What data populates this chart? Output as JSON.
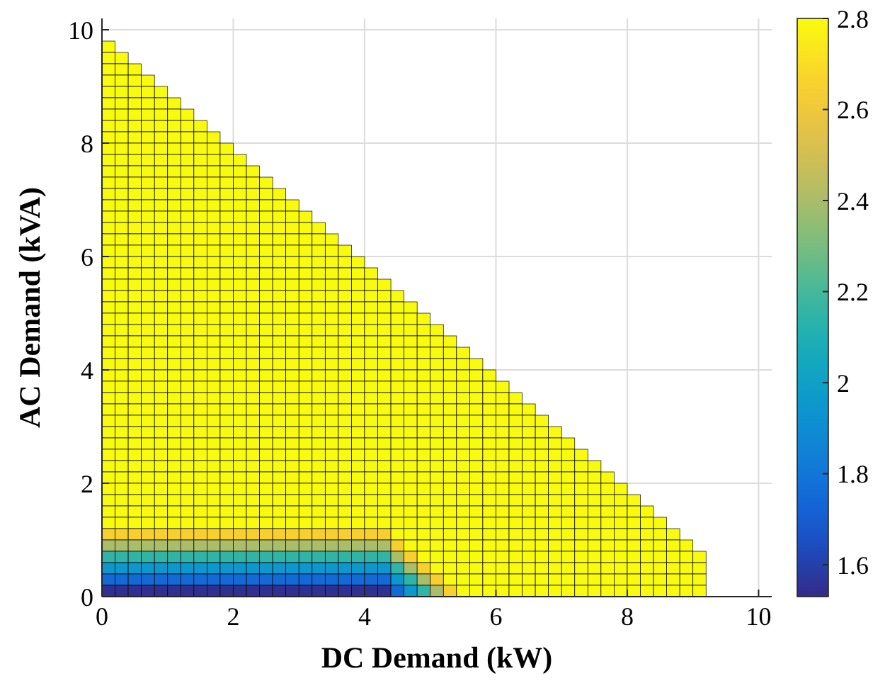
{
  "chart_data": {
    "type": "heatmap",
    "xlabel": "DC Demand (kW)",
    "ylabel": "AC Demand (kVA)",
    "xlim": [
      0,
      10.2
    ],
    "xticks": [
      0,
      2,
      4,
      6,
      8,
      10
    ],
    "ylim": [
      0,
      10.2
    ],
    "yticks": [
      0,
      2,
      4,
      6,
      8,
      10
    ],
    "grid": true,
    "clim": [
      1.53,
      2.8
    ],
    "cticks": [
      1.6,
      1.8,
      2,
      2.2,
      2.4,
      2.6,
      2.8
    ],
    "x": [
      0.1,
      0.3,
      0.5,
      0.7,
      0.9,
      1.1,
      1.3,
      1.5,
      1.7,
      1.9,
      2.1,
      2.3,
      2.5,
      2.7,
      2.9,
      3.1,
      3.3,
      3.5,
      3.7,
      3.9,
      4.1,
      4.3,
      4.5,
      4.7,
      4.9,
      5.1,
      5.3,
      5.5,
      5.7,
      5.9,
      6.1,
      6.3,
      6.5,
      6.7,
      6.9,
      7.1,
      7.3,
      7.5,
      7.7,
      7.9,
      8.1,
      8.3,
      8.5,
      8.7,
      8.9,
      9.1
    ],
    "y": [
      9.7,
      9.5,
      9.3,
      9.1,
      8.9,
      8.7,
      8.5,
      8.3,
      8.1,
      7.9,
      7.7,
      7.5,
      7.3,
      7.1,
      6.9,
      6.7,
      6.5,
      6.3,
      6.1,
      5.9,
      5.7,
      5.5,
      5.3,
      5.1,
      4.9,
      4.7,
      4.5,
      4.3,
      4.1,
      3.9,
      3.7,
      3.5,
      3.3,
      3.1,
      2.9,
      2.7,
      2.5,
      2.3,
      2.1,
      1.9,
      1.7,
      1.5,
      1.3,
      1.1,
      0.9,
      0.7,
      0.5,
      0.3,
      0.1
    ],
    "cells": [
      [
        2.8,
        null,
        null,
        null,
        null,
        null,
        null,
        null,
        null,
        null,
        null,
        null,
        null,
        null,
        null,
        null,
        null,
        null,
        null,
        null,
        null,
        null,
        null,
        null,
        null,
        null,
        null,
        null,
        null,
        null,
        null,
        null,
        null,
        null,
        null,
        null,
        null,
        null,
        null,
        null,
        null,
        null,
        null,
        null,
        null,
        null
      ],
      [
        2.8,
        2.8,
        null,
        null,
        null,
        null,
        null,
        null,
        null,
        null,
        null,
        null,
        null,
        null,
        null,
        null,
        null,
        null,
        null,
        null,
        null,
        null,
        null,
        null,
        null,
        null,
        null,
        null,
        null,
        null,
        null,
        null,
        null,
        null,
        null,
        null,
        null,
        null,
        null,
        null,
        null,
        null,
        null,
        null,
        null,
        null
      ],
      [
        2.8,
        2.8,
        2.8,
        null,
        null,
        null,
        null,
        null,
        null,
        null,
        null,
        null,
        null,
        null,
        null,
        null,
        null,
        null,
        null,
        null,
        null,
        null,
        null,
        null,
        null,
        null,
        null,
        null,
        null,
        null,
        null,
        null,
        null,
        null,
        null,
        null,
        null,
        null,
        null,
        null,
        null,
        null,
        null,
        null,
        null,
        null
      ],
      [
        2.8,
        2.8,
        2.8,
        2.8,
        null,
        null,
        null,
        null,
        null,
        null,
        null,
        null,
        null,
        null,
        null,
        null,
        null,
        null,
        null,
        null,
        null,
        null,
        null,
        null,
        null,
        null,
        null,
        null,
        null,
        null,
        null,
        null,
        null,
        null,
        null,
        null,
        null,
        null,
        null,
        null,
        null,
        null,
        null,
        null,
        null,
        null
      ],
      [
        2.8,
        2.8,
        2.8,
        2.8,
        2.8,
        null,
        null,
        null,
        null,
        null,
        null,
        null,
        null,
        null,
        null,
        null,
        null,
        null,
        null,
        null,
        null,
        null,
        null,
        null,
        null,
        null,
        null,
        null,
        null,
        null,
        null,
        null,
        null,
        null,
        null,
        null,
        null,
        null,
        null,
        null,
        null,
        null,
        null,
        null,
        null,
        null
      ],
      [
        2.8,
        2.8,
        2.8,
        2.8,
        2.8,
        2.8,
        null,
        null,
        null,
        null,
        null,
        null,
        null,
        null,
        null,
        null,
        null,
        null,
        null,
        null,
        null,
        null,
        null,
        null,
        null,
        null,
        null,
        null,
        null,
        null,
        null,
        null,
        null,
        null,
        null,
        null,
        null,
        null,
        null,
        null,
        null,
        null,
        null,
        null,
        null,
        null
      ],
      [
        2.8,
        2.8,
        2.8,
        2.8,
        2.8,
        2.8,
        2.8,
        null,
        null,
        null,
        null,
        null,
        null,
        null,
        null,
        null,
        null,
        null,
        null,
        null,
        null,
        null,
        null,
        null,
        null,
        null,
        null,
        null,
        null,
        null,
        null,
        null,
        null,
        null,
        null,
        null,
        null,
        null,
        null,
        null,
        null,
        null,
        null,
        null,
        null,
        null
      ],
      [
        2.8,
        2.8,
        2.8,
        2.8,
        2.8,
        2.8,
        2.8,
        2.8,
        null,
        null,
        null,
        null,
        null,
        null,
        null,
        null,
        null,
        null,
        null,
        null,
        null,
        null,
        null,
        null,
        null,
        null,
        null,
        null,
        null,
        null,
        null,
        null,
        null,
        null,
        null,
        null,
        null,
        null,
        null,
        null,
        null,
        null,
        null,
        null,
        null,
        null
      ],
      [
        2.8,
        2.8,
        2.8,
        2.8,
        2.8,
        2.8,
        2.8,
        2.8,
        2.8,
        null,
        null,
        null,
        null,
        null,
        null,
        null,
        null,
        null,
        null,
        null,
        null,
        null,
        null,
        null,
        null,
        null,
        null,
        null,
        null,
        null,
        null,
        null,
        null,
        null,
        null,
        null,
        null,
        null,
        null,
        null,
        null,
        null,
        null,
        null,
        null,
        null
      ],
      [
        2.8,
        2.8,
        2.8,
        2.8,
        2.8,
        2.8,
        2.8,
        2.8,
        2.8,
        2.8,
        null,
        null,
        null,
        null,
        null,
        null,
        null,
        null,
        null,
        null,
        null,
        null,
        null,
        null,
        null,
        null,
        null,
        null,
        null,
        null,
        null,
        null,
        null,
        null,
        null,
        null,
        null,
        null,
        null,
        null,
        null,
        null,
        null,
        null,
        null,
        null
      ],
      [
        2.8,
        2.8,
        2.8,
        2.8,
        2.8,
        2.8,
        2.8,
        2.8,
        2.8,
        2.8,
        2.8,
        null,
        null,
        null,
        null,
        null,
        null,
        null,
        null,
        null,
        null,
        null,
        null,
        null,
        null,
        null,
        null,
        null,
        null,
        null,
        null,
        null,
        null,
        null,
        null,
        null,
        null,
        null,
        null,
        null,
        null,
        null,
        null,
        null,
        null,
        null
      ],
      [
        2.8,
        2.8,
        2.8,
        2.8,
        2.8,
        2.8,
        2.8,
        2.8,
        2.8,
        2.8,
        2.8,
        2.8,
        null,
        null,
        null,
        null,
        null,
        null,
        null,
        null,
        null,
        null,
        null,
        null,
        null,
        null,
        null,
        null,
        null,
        null,
        null,
        null,
        null,
        null,
        null,
        null,
        null,
        null,
        null,
        null,
        null,
        null,
        null,
        null,
        null,
        null
      ],
      [
        2.8,
        2.8,
        2.8,
        2.8,
        2.8,
        2.8,
        2.8,
        2.8,
        2.8,
        2.8,
        2.8,
        2.8,
        2.8,
        null,
        null,
        null,
        null,
        null,
        null,
        null,
        null,
        null,
        null,
        null,
        null,
        null,
        null,
        null,
        null,
        null,
        null,
        null,
        null,
        null,
        null,
        null,
        null,
        null,
        null,
        null,
        null,
        null,
        null,
        null,
        null,
        null
      ],
      [
        2.8,
        2.8,
        2.8,
        2.8,
        2.8,
        2.8,
        2.8,
        2.8,
        2.8,
        2.8,
        2.8,
        2.8,
        2.8,
        2.8,
        null,
        null,
        null,
        null,
        null,
        null,
        null,
        null,
        null,
        null,
        null,
        null,
        null,
        null,
        null,
        null,
        null,
        null,
        null,
        null,
        null,
        null,
        null,
        null,
        null,
        null,
        null,
        null,
        null,
        null,
        null,
        null
      ],
      [
        2.8,
        2.8,
        2.8,
        2.8,
        2.8,
        2.8,
        2.8,
        2.8,
        2.8,
        2.8,
        2.8,
        2.8,
        2.8,
        2.8,
        2.8,
        null,
        null,
        null,
        null,
        null,
        null,
        null,
        null,
        null,
        null,
        null,
        null,
        null,
        null,
        null,
        null,
        null,
        null,
        null,
        null,
        null,
        null,
        null,
        null,
        null,
        null,
        null,
        null,
        null,
        null,
        null
      ],
      [
        2.8,
        2.8,
        2.8,
        2.8,
        2.8,
        2.8,
        2.8,
        2.8,
        2.8,
        2.8,
        2.8,
        2.8,
        2.8,
        2.8,
        2.8,
        2.8,
        null,
        null,
        null,
        null,
        null,
        null,
        null,
        null,
        null,
        null,
        null,
        null,
        null,
        null,
        null,
        null,
        null,
        null,
        null,
        null,
        null,
        null,
        null,
        null,
        null,
        null,
        null,
        null,
        null,
        null
      ],
      [
        2.8,
        2.8,
        2.8,
        2.8,
        2.8,
        2.8,
        2.8,
        2.8,
        2.8,
        2.8,
        2.8,
        2.8,
        2.8,
        2.8,
        2.8,
        2.8,
        2.8,
        null,
        null,
        null,
        null,
        null,
        null,
        null,
        null,
        null,
        null,
        null,
        null,
        null,
        null,
        null,
        null,
        null,
        null,
        null,
        null,
        null,
        null,
        null,
        null,
        null,
        null,
        null,
        null,
        null
      ],
      [
        2.8,
        2.8,
        2.8,
        2.8,
        2.8,
        2.8,
        2.8,
        2.8,
        2.8,
        2.8,
        2.8,
        2.8,
        2.8,
        2.8,
        2.8,
        2.8,
        2.8,
        2.8,
        null,
        null,
        null,
        null,
        null,
        null,
        null,
        null,
        null,
        null,
        null,
        null,
        null,
        null,
        null,
        null,
        null,
        null,
        null,
        null,
        null,
        null,
        null,
        null,
        null,
        null,
        null,
        null
      ],
      [
        2.8,
        2.8,
        2.8,
        2.8,
        2.8,
        2.8,
        2.8,
        2.8,
        2.8,
        2.8,
        2.8,
        2.8,
        2.8,
        2.8,
        2.8,
        2.8,
        2.8,
        2.8,
        2.8,
        null,
        null,
        null,
        null,
        null,
        null,
        null,
        null,
        null,
        null,
        null,
        null,
        null,
        null,
        null,
        null,
        null,
        null,
        null,
        null,
        null,
        null,
        null,
        null,
        null,
        null,
        null
      ],
      [
        2.8,
        2.8,
        2.8,
        2.8,
        2.8,
        2.8,
        2.8,
        2.8,
        2.8,
        2.8,
        2.8,
        2.8,
        2.8,
        2.8,
        2.8,
        2.8,
        2.8,
        2.8,
        2.8,
        2.8,
        null,
        null,
        null,
        null,
        null,
        null,
        null,
        null,
        null,
        null,
        null,
        null,
        null,
        null,
        null,
        null,
        null,
        null,
        null,
        null,
        null,
        null,
        null,
        null,
        null,
        null
      ],
      [
        2.8,
        2.8,
        2.8,
        2.8,
        2.8,
        2.8,
        2.8,
        2.8,
        2.8,
        2.8,
        2.8,
        2.8,
        2.8,
        2.8,
        2.8,
        2.8,
        2.8,
        2.8,
        2.8,
        2.8,
        2.8,
        null,
        null,
        null,
        null,
        null,
        null,
        null,
        null,
        null,
        null,
        null,
        null,
        null,
        null,
        null,
        null,
        null,
        null,
        null,
        null,
        null,
        null,
        null,
        null,
        null
      ],
      [
        2.8,
        2.8,
        2.8,
        2.8,
        2.8,
        2.8,
        2.8,
        2.8,
        2.8,
        2.8,
        2.8,
        2.8,
        2.8,
        2.8,
        2.8,
        2.8,
        2.8,
        2.8,
        2.8,
        2.8,
        2.8,
        2.8,
        null,
        null,
        null,
        null,
        null,
        null,
        null,
        null,
        null,
        null,
        null,
        null,
        null,
        null,
        null,
        null,
        null,
        null,
        null,
        null,
        null,
        null,
        null,
        null
      ],
      [
        2.8,
        2.8,
        2.8,
        2.8,
        2.8,
        2.8,
        2.8,
        2.8,
        2.8,
        2.8,
        2.8,
        2.8,
        2.8,
        2.8,
        2.8,
        2.8,
        2.8,
        2.8,
        2.8,
        2.8,
        2.8,
        2.8,
        2.8,
        null,
        null,
        null,
        null,
        null,
        null,
        null,
        null,
        null,
        null,
        null,
        null,
        null,
        null,
        null,
        null,
        null,
        null,
        null,
        null,
        null,
        null,
        null
      ],
      [
        2.8,
        2.8,
        2.8,
        2.8,
        2.8,
        2.8,
        2.8,
        2.8,
        2.8,
        2.8,
        2.8,
        2.8,
        2.8,
        2.8,
        2.8,
        2.8,
        2.8,
        2.8,
        2.8,
        2.8,
        2.8,
        2.8,
        2.8,
        2.8,
        null,
        null,
        null,
        null,
        null,
        null,
        null,
        null,
        null,
        null,
        null,
        null,
        null,
        null,
        null,
        null,
        null,
        null,
        null,
        null,
        null,
        null
      ],
      [
        2.8,
        2.8,
        2.8,
        2.8,
        2.8,
        2.8,
        2.8,
        2.8,
        2.8,
        2.8,
        2.8,
        2.8,
        2.8,
        2.8,
        2.8,
        2.8,
        2.8,
        2.8,
        2.8,
        2.8,
        2.8,
        2.8,
        2.8,
        2.8,
        2.8,
        null,
        null,
        null,
        null,
        null,
        null,
        null,
        null,
        null,
        null,
        null,
        null,
        null,
        null,
        null,
        null,
        null,
        null,
        null,
        null,
        null
      ],
      [
        2.8,
        2.8,
        2.8,
        2.8,
        2.8,
        2.8,
        2.8,
        2.8,
        2.8,
        2.8,
        2.8,
        2.8,
        2.8,
        2.8,
        2.8,
        2.8,
        2.8,
        2.8,
        2.8,
        2.8,
        2.8,
        2.8,
        2.8,
        2.8,
        2.8,
        2.8,
        null,
        null,
        null,
        null,
        null,
        null,
        null,
        null,
        null,
        null,
        null,
        null,
        null,
        null,
        null,
        null,
        null,
        null,
        null,
        null
      ],
      [
        2.8,
        2.8,
        2.8,
        2.8,
        2.8,
        2.8,
        2.8,
        2.8,
        2.8,
        2.8,
        2.8,
        2.8,
        2.8,
        2.8,
        2.8,
        2.8,
        2.8,
        2.8,
        2.8,
        2.8,
        2.8,
        2.8,
        2.8,
        2.8,
        2.8,
        2.8,
        2.8,
        null,
        null,
        null,
        null,
        null,
        null,
        null,
        null,
        null,
        null,
        null,
        null,
        null,
        null,
        null,
        null,
        null,
        null,
        null
      ],
      [
        2.8,
        2.8,
        2.8,
        2.8,
        2.8,
        2.8,
        2.8,
        2.8,
        2.8,
        2.8,
        2.8,
        2.8,
        2.8,
        2.8,
        2.8,
        2.8,
        2.8,
        2.8,
        2.8,
        2.8,
        2.8,
        2.8,
        2.8,
        2.8,
        2.8,
        2.8,
        2.8,
        2.8,
        null,
        null,
        null,
        null,
        null,
        null,
        null,
        null,
        null,
        null,
        null,
        null,
        null,
        null,
        null,
        null,
        null,
        null
      ],
      [
        2.8,
        2.8,
        2.8,
        2.8,
        2.8,
        2.8,
        2.8,
        2.8,
        2.8,
        2.8,
        2.8,
        2.8,
        2.8,
        2.8,
        2.8,
        2.8,
        2.8,
        2.8,
        2.8,
        2.8,
        2.8,
        2.8,
        2.8,
        2.8,
        2.8,
        2.8,
        2.8,
        2.8,
        2.8,
        null,
        null,
        null,
        null,
        null,
        null,
        null,
        null,
        null,
        null,
        null,
        null,
        null,
        null,
        null,
        null,
        null
      ],
      [
        2.8,
        2.8,
        2.8,
        2.8,
        2.8,
        2.8,
        2.8,
        2.8,
        2.8,
        2.8,
        2.8,
        2.8,
        2.8,
        2.8,
        2.8,
        2.8,
        2.8,
        2.8,
        2.8,
        2.8,
        2.8,
        2.8,
        2.8,
        2.8,
        2.8,
        2.8,
        2.8,
        2.8,
        2.8,
        2.8,
        null,
        null,
        null,
        null,
        null,
        null,
        null,
        null,
        null,
        null,
        null,
        null,
        null,
        null,
        null,
        null
      ],
      [
        2.8,
        2.8,
        2.8,
        2.8,
        2.8,
        2.8,
        2.8,
        2.8,
        2.8,
        2.8,
        2.8,
        2.8,
        2.8,
        2.8,
        2.8,
        2.8,
        2.8,
        2.8,
        2.8,
        2.8,
        2.8,
        2.8,
        2.8,
        2.8,
        2.8,
        2.8,
        2.8,
        2.8,
        2.8,
        2.8,
        2.8,
        null,
        null,
        null,
        null,
        null,
        null,
        null,
        null,
        null,
        null,
        null,
        null,
        null,
        null,
        null
      ],
      [
        2.8,
        2.8,
        2.8,
        2.8,
        2.8,
        2.8,
        2.8,
        2.8,
        2.8,
        2.8,
        2.8,
        2.8,
        2.8,
        2.8,
        2.8,
        2.8,
        2.8,
        2.8,
        2.8,
        2.8,
        2.8,
        2.8,
        2.8,
        2.8,
        2.8,
        2.8,
        2.8,
        2.8,
        2.8,
        2.8,
        2.8,
        2.8,
        null,
        null,
        null,
        null,
        null,
        null,
        null,
        null,
        null,
        null,
        null,
        null,
        null,
        null
      ],
      [
        2.8,
        2.8,
        2.8,
        2.8,
        2.8,
        2.8,
        2.8,
        2.8,
        2.8,
        2.8,
        2.8,
        2.8,
        2.8,
        2.8,
        2.8,
        2.8,
        2.8,
        2.8,
        2.8,
        2.8,
        2.8,
        2.8,
        2.8,
        2.8,
        2.8,
        2.8,
        2.8,
        2.8,
        2.8,
        2.8,
        2.8,
        2.8,
        2.8,
        null,
        null,
        null,
        null,
        null,
        null,
        null,
        null,
        null,
        null,
        null,
        null,
        null
      ],
      [
        2.8,
        2.8,
        2.8,
        2.8,
        2.8,
        2.8,
        2.8,
        2.8,
        2.8,
        2.8,
        2.8,
        2.8,
        2.8,
        2.8,
        2.8,
        2.8,
        2.8,
        2.8,
        2.8,
        2.8,
        2.8,
        2.8,
        2.8,
        2.8,
        2.8,
        2.8,
        2.8,
        2.8,
        2.8,
        2.8,
        2.8,
        2.8,
        2.8,
        2.8,
        null,
        null,
        null,
        null,
        null,
        null,
        null,
        null,
        null,
        null,
        null,
        null
      ],
      [
        2.8,
        2.8,
        2.8,
        2.8,
        2.8,
        2.8,
        2.8,
        2.8,
        2.8,
        2.8,
        2.8,
        2.8,
        2.8,
        2.8,
        2.8,
        2.8,
        2.8,
        2.8,
        2.8,
        2.8,
        2.8,
        2.8,
        2.8,
        2.8,
        2.8,
        2.8,
        2.8,
        2.8,
        2.8,
        2.8,
        2.8,
        2.8,
        2.8,
        2.8,
        2.8,
        null,
        null,
        null,
        null,
        null,
        null,
        null,
        null,
        null,
        null,
        null
      ],
      [
        2.8,
        2.8,
        2.8,
        2.8,
        2.8,
        2.8,
        2.8,
        2.8,
        2.8,
        2.8,
        2.8,
        2.8,
        2.8,
        2.8,
        2.8,
        2.8,
        2.8,
        2.8,
        2.8,
        2.8,
        2.8,
        2.8,
        2.8,
        2.8,
        2.8,
        2.8,
        2.8,
        2.8,
        2.8,
        2.8,
        2.8,
        2.8,
        2.8,
        2.8,
        2.8,
        2.8,
        null,
        null,
        null,
        null,
        null,
        null,
        null,
        null,
        null,
        null
      ],
      [
        2.8,
        2.8,
        2.8,
        2.8,
        2.8,
        2.8,
        2.8,
        2.8,
        2.8,
        2.8,
        2.8,
        2.8,
        2.8,
        2.8,
        2.8,
        2.8,
        2.8,
        2.8,
        2.8,
        2.8,
        2.8,
        2.8,
        2.8,
        2.8,
        2.8,
        2.8,
        2.8,
        2.8,
        2.8,
        2.8,
        2.8,
        2.8,
        2.8,
        2.8,
        2.8,
        2.8,
        2.8,
        null,
        null,
        null,
        null,
        null,
        null,
        null,
        null,
        null
      ],
      [
        2.8,
        2.8,
        2.8,
        2.8,
        2.8,
        2.8,
        2.8,
        2.8,
        2.8,
        2.8,
        2.8,
        2.8,
        2.8,
        2.8,
        2.8,
        2.8,
        2.8,
        2.8,
        2.8,
        2.8,
        2.8,
        2.8,
        2.8,
        2.8,
        2.8,
        2.8,
        2.8,
        2.8,
        2.8,
        2.8,
        2.8,
        2.8,
        2.8,
        2.8,
        2.8,
        2.8,
        2.8,
        2.8,
        null,
        null,
        null,
        null,
        null,
        null,
        null,
        null
      ],
      [
        2.8,
        2.8,
        2.8,
        2.8,
        2.8,
        2.8,
        2.8,
        2.8,
        2.8,
        2.8,
        2.8,
        2.8,
        2.8,
        2.8,
        2.8,
        2.8,
        2.8,
        2.8,
        2.8,
        2.8,
        2.8,
        2.8,
        2.8,
        2.8,
        2.8,
        2.8,
        2.8,
        2.8,
        2.8,
        2.8,
        2.8,
        2.8,
        2.8,
        2.8,
        2.8,
        2.8,
        2.8,
        2.8,
        2.8,
        null,
        null,
        null,
        null,
        null,
        null,
        null
      ],
      [
        2.8,
        2.8,
        2.8,
        2.8,
        2.8,
        2.8,
        2.8,
        2.8,
        2.8,
        2.8,
        2.8,
        2.8,
        2.8,
        2.8,
        2.8,
        2.8,
        2.8,
        2.8,
        2.8,
        2.8,
        2.8,
        2.8,
        2.8,
        2.8,
        2.8,
        2.8,
        2.8,
        2.8,
        2.8,
        2.8,
        2.8,
        2.8,
        2.8,
        2.8,
        2.8,
        2.8,
        2.8,
        2.8,
        2.8,
        2.8,
        null,
        null,
        null,
        null,
        null,
        null
      ],
      [
        2.8,
        2.8,
        2.8,
        2.8,
        2.8,
        2.8,
        2.8,
        2.8,
        2.8,
        2.8,
        2.8,
        2.8,
        2.8,
        2.8,
        2.8,
        2.8,
        2.8,
        2.8,
        2.8,
        2.8,
        2.8,
        2.8,
        2.8,
        2.8,
        2.8,
        2.8,
        2.8,
        2.8,
        2.8,
        2.8,
        2.8,
        2.8,
        2.8,
        2.8,
        2.8,
        2.8,
        2.8,
        2.8,
        2.8,
        2.8,
        2.8,
        null,
        null,
        null,
        null,
        null
      ],
      [
        2.8,
        2.8,
        2.8,
        2.8,
        2.8,
        2.8,
        2.8,
        2.8,
        2.8,
        2.8,
        2.8,
        2.8,
        2.8,
        2.8,
        2.8,
        2.8,
        2.8,
        2.8,
        2.8,
        2.8,
        2.8,
        2.8,
        2.8,
        2.8,
        2.8,
        2.8,
        2.8,
        2.8,
        2.8,
        2.8,
        2.8,
        2.8,
        2.8,
        2.8,
        2.8,
        2.8,
        2.8,
        2.8,
        2.8,
        2.8,
        2.8,
        2.8,
        null,
        null,
        null,
        null
      ],
      [
        2.8,
        2.8,
        2.8,
        2.8,
        2.8,
        2.8,
        2.8,
        2.8,
        2.8,
        2.8,
        2.8,
        2.8,
        2.8,
        2.8,
        2.8,
        2.8,
        2.8,
        2.8,
        2.8,
        2.8,
        2.8,
        2.8,
        2.8,
        2.8,
        2.8,
        2.8,
        2.8,
        2.8,
        2.8,
        2.8,
        2.8,
        2.8,
        2.8,
        2.8,
        2.8,
        2.8,
        2.8,
        2.8,
        2.8,
        2.8,
        2.8,
        2.8,
        2.8,
        null,
        null,
        null
      ],
      [
        2.65,
        2.65,
        2.65,
        2.65,
        2.65,
        2.65,
        2.65,
        2.65,
        2.65,
        2.65,
        2.65,
        2.65,
        2.65,
        2.65,
        2.65,
        2.65,
        2.65,
        2.65,
        2.65,
        2.65,
        2.65,
        2.65,
        2.8,
        2.8,
        2.8,
        2.8,
        2.8,
        2.8,
        2.8,
        2.8,
        2.8,
        2.8,
        2.8,
        2.8,
        2.8,
        2.8,
        2.8,
        2.8,
        2.8,
        2.8,
        2.8,
        2.8,
        2.8,
        2.8,
        null,
        null
      ],
      [
        2.4,
        2.4,
        2.4,
        2.4,
        2.4,
        2.4,
        2.4,
        2.4,
        2.4,
        2.4,
        2.4,
        2.4,
        2.4,
        2.4,
        2.4,
        2.4,
        2.4,
        2.4,
        2.4,
        2.4,
        2.4,
        2.4,
        2.65,
        2.8,
        2.8,
        2.8,
        2.8,
        2.8,
        2.8,
        2.8,
        2.8,
        2.8,
        2.8,
        2.8,
        2.8,
        2.8,
        2.8,
        2.8,
        2.8,
        2.8,
        2.8,
        2.8,
        2.8,
        2.8,
        2.8,
        null
      ],
      [
        2.15,
        2.15,
        2.15,
        2.15,
        2.15,
        2.15,
        2.15,
        2.15,
        2.15,
        2.15,
        2.15,
        2.15,
        2.15,
        2.15,
        2.15,
        2.15,
        2.15,
        2.15,
        2.15,
        2.15,
        2.15,
        2.15,
        2.4,
        2.65,
        2.8,
        2.8,
        2.8,
        2.8,
        2.8,
        2.8,
        2.8,
        2.8,
        2.8,
        2.8,
        2.8,
        2.8,
        2.8,
        2.8,
        2.8,
        2.8,
        2.8,
        2.8,
        2.8,
        2.8,
        2.8,
        2.8
      ],
      [
        1.95,
        1.95,
        1.95,
        1.95,
        1.95,
        1.95,
        1.95,
        1.95,
        1.95,
        1.95,
        1.95,
        1.95,
        1.95,
        1.95,
        1.95,
        1.95,
        1.95,
        1.95,
        1.95,
        1.95,
        1.95,
        1.95,
        2.15,
        2.4,
        2.65,
        2.8,
        2.8,
        2.8,
        2.8,
        2.8,
        2.8,
        2.8,
        2.8,
        2.8,
        2.8,
        2.8,
        2.8,
        2.8,
        2.8,
        2.8,
        2.8,
        2.8,
        2.8,
        2.8,
        2.8,
        2.8
      ],
      [
        1.75,
        1.75,
        1.75,
        1.75,
        1.75,
        1.75,
        1.75,
        1.75,
        1.75,
        1.75,
        1.75,
        1.75,
        1.75,
        1.75,
        1.75,
        1.75,
        1.75,
        1.75,
        1.75,
        1.75,
        1.75,
        1.75,
        1.95,
        2.15,
        2.4,
        2.65,
        2.8,
        2.8,
        2.8,
        2.8,
        2.8,
        2.8,
        2.8,
        2.8,
        2.8,
        2.8,
        2.8,
        2.8,
        2.8,
        2.8,
        2.8,
        2.8,
        2.8,
        2.8,
        2.8,
        2.8
      ],
      [
        1.55,
        1.55,
        1.55,
        1.55,
        1.55,
        1.55,
        1.55,
        1.55,
        1.55,
        1.55,
        1.55,
        1.55,
        1.55,
        1.55,
        1.55,
        1.55,
        1.55,
        1.55,
        1.55,
        1.55,
        1.55,
        1.55,
        1.75,
        1.95,
        2.15,
        2.4,
        2.65,
        2.8,
        2.8,
        2.8,
        2.8,
        2.8,
        2.8,
        2.8,
        2.8,
        2.8,
        2.8,
        2.8,
        2.8,
        2.8,
        2.8,
        2.8,
        2.8,
        2.8,
        2.8,
        2.8
      ]
    ]
  }
}
